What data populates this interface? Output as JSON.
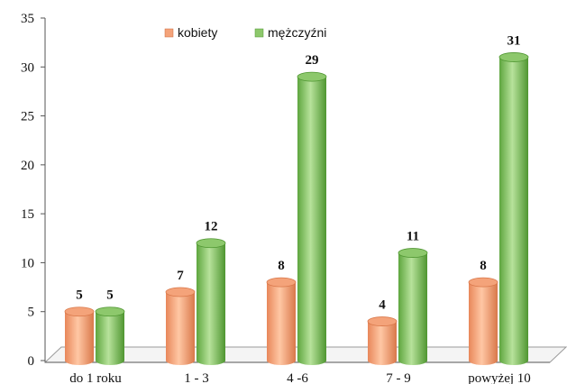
{
  "chart_data": {
    "type": "bar",
    "style": "3d-cylinder",
    "categories": [
      "do 1 roku",
      "1 - 3",
      "4 -6",
      "7 - 9",
      "powyżej 10"
    ],
    "series": [
      {
        "name": "kobiety",
        "values": [
          5,
          7,
          8,
          4,
          8
        ],
        "color": "#f4a37a"
      },
      {
        "name": "mężczyźni",
        "values": [
          5,
          12,
          29,
          11,
          31
        ],
        "color": "#8dc86c"
      }
    ],
    "ylim": [
      0,
      35
    ],
    "yticks": [
      0,
      5,
      10,
      15,
      20,
      25,
      30,
      35
    ],
    "grid": false,
    "legend": "top-center",
    "data_labels": true
  }
}
